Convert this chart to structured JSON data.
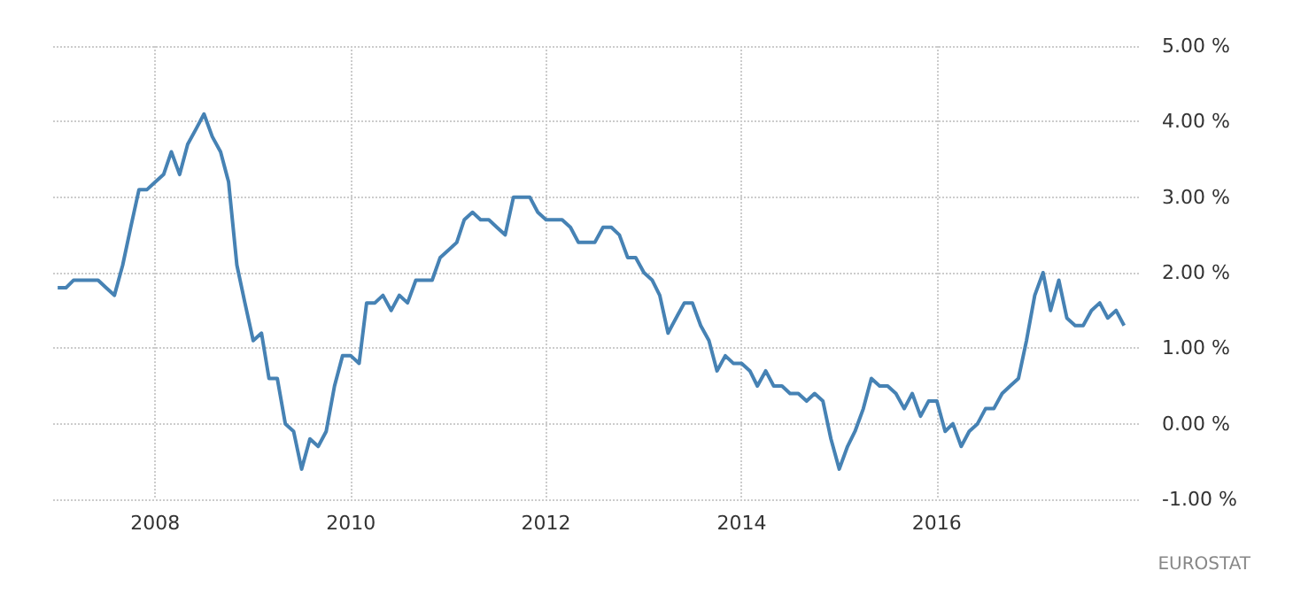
{
  "chart_data": {
    "type": "line",
    "x": [
      "2007-01",
      "2007-02",
      "2007-03",
      "2007-04",
      "2007-05",
      "2007-06",
      "2007-07",
      "2007-08",
      "2007-09",
      "2007-10",
      "2007-11",
      "2007-12",
      "2008-01",
      "2008-02",
      "2008-03",
      "2008-04",
      "2008-05",
      "2008-06",
      "2008-07",
      "2008-08",
      "2008-09",
      "2008-10",
      "2008-11",
      "2008-12",
      "2009-01",
      "2009-02",
      "2009-03",
      "2009-04",
      "2009-05",
      "2009-06",
      "2009-07",
      "2009-08",
      "2009-09",
      "2009-10",
      "2009-11",
      "2009-12",
      "2010-01",
      "2010-02",
      "2010-03",
      "2010-04",
      "2010-05",
      "2010-06",
      "2010-07",
      "2010-08",
      "2010-09",
      "2010-10",
      "2010-11",
      "2010-12",
      "2011-01",
      "2011-02",
      "2011-03",
      "2011-04",
      "2011-05",
      "2011-06",
      "2011-07",
      "2011-08",
      "2011-09",
      "2011-10",
      "2011-11",
      "2011-12",
      "2012-01",
      "2012-02",
      "2012-03",
      "2012-04",
      "2012-05",
      "2012-06",
      "2012-07",
      "2012-08",
      "2012-09",
      "2012-10",
      "2012-11",
      "2012-12",
      "2013-01",
      "2013-02",
      "2013-03",
      "2013-04",
      "2013-05",
      "2013-06",
      "2013-07",
      "2013-08",
      "2013-09",
      "2013-10",
      "2013-11",
      "2013-12",
      "2014-01",
      "2014-02",
      "2014-03",
      "2014-04",
      "2014-05",
      "2014-06",
      "2014-07",
      "2014-08",
      "2014-09",
      "2014-10",
      "2014-11",
      "2014-12",
      "2015-01",
      "2015-02",
      "2015-03",
      "2015-04",
      "2015-05",
      "2015-06",
      "2015-07",
      "2015-08",
      "2015-09",
      "2015-10",
      "2015-11",
      "2015-12",
      "2016-01",
      "2016-02",
      "2016-03",
      "2016-04",
      "2016-05",
      "2016-06",
      "2016-07",
      "2016-08",
      "2016-09",
      "2016-10",
      "2016-11",
      "2016-12",
      "2017-01",
      "2017-02",
      "2017-03",
      "2017-04",
      "2017-05",
      "2017-06",
      "2017-07",
      "2017-08",
      "2017-09",
      "2017-10",
      "2017-11",
      "2017-12"
    ],
    "series": [
      {
        "color": "#4682b4",
        "values": [
          1.8,
          1.8,
          1.9,
          1.9,
          1.9,
          1.9,
          1.8,
          1.7,
          2.1,
          2.6,
          3.1,
          3.1,
          3.2,
          3.3,
          3.6,
          3.3,
          3.7,
          3.9,
          4.1,
          3.8,
          3.6,
          3.2,
          2.1,
          1.6,
          1.1,
          1.2,
          0.6,
          0.6,
          0.0,
          -0.1,
          -0.6,
          -0.2,
          -0.3,
          -0.1,
          0.5,
          0.9,
          0.9,
          0.8,
          1.6,
          1.6,
          1.7,
          1.5,
          1.7,
          1.6,
          1.9,
          1.9,
          1.9,
          2.2,
          2.3,
          2.4,
          2.7,
          2.8,
          2.7,
          2.7,
          2.6,
          2.5,
          3.0,
          3.0,
          3.0,
          2.8,
          2.7,
          2.7,
          2.7,
          2.6,
          2.4,
          2.4,
          2.4,
          2.6,
          2.6,
          2.5,
          2.2,
          2.2,
          2.0,
          1.9,
          1.7,
          1.2,
          1.4,
          1.6,
          1.6,
          1.3,
          1.1,
          0.7,
          0.9,
          0.8,
          0.8,
          0.7,
          0.5,
          0.7,
          0.5,
          0.5,
          0.4,
          0.4,
          0.3,
          0.4,
          0.3,
          -0.2,
          -0.6,
          -0.3,
          -0.1,
          0.2,
          0.6,
          0.5,
          0.5,
          0.4,
          0.2,
          0.4,
          0.1,
          0.3,
          0.3,
          -0.1,
          0.0,
          -0.3,
          -0.1,
          0.0,
          0.2,
          0.2,
          0.4,
          0.5,
          0.6,
          1.1,
          1.7,
          2.0,
          1.5,
          1.9,
          1.4,
          1.3,
          1.3,
          1.5,
          1.6,
          1.4,
          1.5,
          1.3
        ]
      }
    ],
    "xlim": [
      "2006-12-15",
      "2018-02-01"
    ],
    "xticks": [
      "2008",
      "2010",
      "2012",
      "2014",
      "2016"
    ],
    "ylim": [
      -1,
      5
    ],
    "yticks": [
      {
        "value": -1,
        "label": "-1.00 %"
      },
      {
        "value": 0,
        "label": "0.00 %"
      },
      {
        "value": 1,
        "label": "1.00 %"
      },
      {
        "value": 2,
        "label": "2.00 %"
      },
      {
        "value": 3,
        "label": "3.00 %"
      },
      {
        "value": 4,
        "label": "4.00 %"
      },
      {
        "value": 5,
        "label": "5.00 %"
      }
    ],
    "grid": true,
    "line_style": "solid",
    "annotations": [
      "EUROSTAT"
    ]
  }
}
